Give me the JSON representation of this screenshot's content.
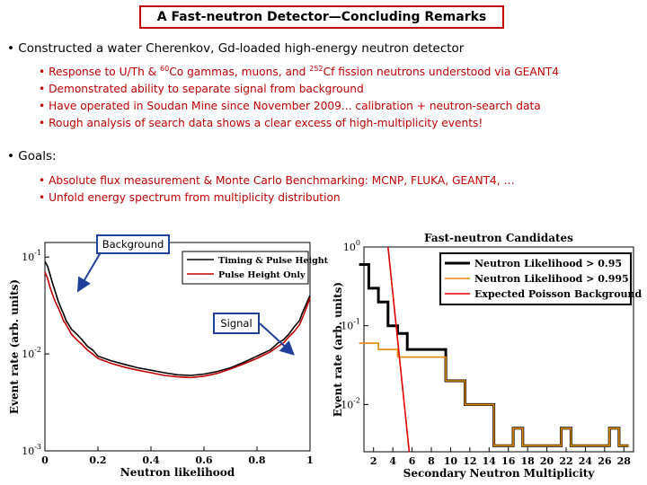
{
  "slide": {
    "title": "A Fast-neutron Detector—Concluding Remarks",
    "bullet1": "Constructed a water Cherenkov, Gd-loaded high-energy neutron detector",
    "sub1": [
      {
        "pre": "Response to U/Th & ",
        "sup1": "60",
        "mid": "Co gammas, muons, and ",
        "sup2": "252",
        "post": "Cf fission neutrons understood via GEANT4"
      },
      {
        "text": "Demonstrated ability to separate signal from background"
      },
      {
        "text": "Have operated in Soudan Mine since November 2009... calibration + neutron-search data"
      },
      {
        "text": "Rough analysis of search data shows a clear excess of high-multiplicity events!"
      }
    ],
    "bullet2": "Goals:",
    "sub2": [
      "Absolute flux measurement & Monte Carlo Benchmarking:  MCNP, FLUKA, GEANT4, …",
      "Unfold energy spectrum from multiplicity distribution"
    ],
    "callout_background": "Background",
    "callout_signal": "Signal",
    "colors": {
      "accent": "#c00000",
      "callout_border": "#1f3f9a"
    }
  },
  "chart_data": [
    {
      "type": "line",
      "title": "",
      "xlabel": "Neutron likelihood",
      "ylabel": "Event rate (arb. units)",
      "xlim": [
        0,
        1
      ],
      "ylim_log10": [
        -3,
        -0.85
      ],
      "yscale": "log",
      "x_ticks": [
        "0",
        "0.2",
        "0.4",
        "0.6",
        "0.8",
        "1"
      ],
      "y_ticks": [
        {
          "base": "10",
          "exp": "-1"
        },
        {
          "base": "10",
          "exp": "-2"
        },
        {
          "base": "10",
          "exp": "-3"
        }
      ],
      "legend": [
        "Timing & Pulse Height",
        "Pulse Height Only"
      ],
      "legend_position": "top-right",
      "series": [
        {
          "name": "Timing & Pulse Height",
          "color": "#000000",
          "x": [
            0.0,
            0.01,
            0.02,
            0.03,
            0.04,
            0.05,
            0.06,
            0.07,
            0.08,
            0.09,
            0.1,
            0.12,
            0.14,
            0.16,
            0.18,
            0.2,
            0.25,
            0.3,
            0.35,
            0.4,
            0.45,
            0.5,
            0.55,
            0.6,
            0.65,
            0.7,
            0.75,
            0.8,
            0.85,
            0.88,
            0.9,
            0.92,
            0.94,
            0.96,
            0.97,
            0.98,
            0.99,
            1.0
          ],
          "y": [
            0.09,
            0.08,
            0.065,
            0.052,
            0.043,
            0.035,
            0.03,
            0.026,
            0.022,
            0.02,
            0.018,
            0.016,
            0.014,
            0.012,
            0.011,
            0.0095,
            0.0085,
            0.0078,
            0.0072,
            0.0068,
            0.0064,
            0.0061,
            0.006,
            0.0062,
            0.0066,
            0.0072,
            0.0082,
            0.0095,
            0.011,
            0.013,
            0.014,
            0.016,
            0.019,
            0.022,
            0.026,
            0.03,
            0.035,
            0.04
          ]
        },
        {
          "name": "Pulse Height Only",
          "color": "#c00000",
          "x": [
            0.0,
            0.01,
            0.02,
            0.03,
            0.04,
            0.05,
            0.06,
            0.07,
            0.08,
            0.09,
            0.1,
            0.12,
            0.14,
            0.16,
            0.18,
            0.2,
            0.25,
            0.3,
            0.35,
            0.4,
            0.45,
            0.5,
            0.55,
            0.6,
            0.65,
            0.7,
            0.75,
            0.8,
            0.85,
            0.88,
            0.9,
            0.92,
            0.94,
            0.96,
            0.97,
            0.98,
            0.99,
            1.0
          ],
          "y": [
            0.07,
            0.06,
            0.048,
            0.04,
            0.034,
            0.03,
            0.026,
            0.022,
            0.02,
            0.018,
            0.016,
            0.014,
            0.0125,
            0.011,
            0.01,
            0.009,
            0.008,
            0.0073,
            0.0068,
            0.0064,
            0.006,
            0.0058,
            0.0057,
            0.0059,
            0.0063,
            0.007,
            0.0079,
            0.009,
            0.0105,
            0.012,
            0.013,
            0.015,
            0.017,
            0.02,
            0.023,
            0.027,
            0.032,
            0.038
          ]
        }
      ]
    },
    {
      "type": "line",
      "title": "Fast-neutron Candidates",
      "xlabel": "Secondary Neutron Multiplicity",
      "ylabel": "Event rate (arb. units)",
      "xlim": [
        1,
        29
      ],
      "ylim_log10": [
        -2.6,
        0
      ],
      "yscale": "log",
      "x_ticks": [
        "2",
        "4",
        "6",
        "8",
        "10",
        "12",
        "14",
        "16",
        "18",
        "20",
        "22",
        "24",
        "26",
        "28"
      ],
      "y_ticks": [
        {
          "base": "10",
          "exp": "0"
        },
        {
          "base": "10",
          "exp": "-1"
        },
        {
          "base": "10",
          "exp": "-2"
        }
      ],
      "legend": [
        "Neutron Likelihood > 0.95",
        "Neutron Likelihood > 0.995",
        "Expected Poisson Background"
      ],
      "legend_position": "top-right",
      "series": [
        {
          "name": "Neutron Likelihood > 0.95",
          "color": "#000000",
          "style": "step",
          "x": [
            1,
            2,
            3,
            4,
            5,
            6,
            7,
            8,
            9,
            10,
            11,
            12,
            13,
            14,
            15,
            16,
            17,
            18,
            19,
            20,
            21,
            22,
            23,
            24,
            25,
            26,
            27,
            28
          ],
          "y": [
            0.6,
            0.3,
            0.2,
            0.1,
            0.08,
            0.05,
            0.05,
            0.05,
            0.05,
            0.02,
            0.02,
            0.01,
            0.01,
            0.01,
            0.003,
            0.003,
            0.005,
            0.003,
            0.003,
            0.003,
            0.003,
            0.005,
            0.003,
            0.003,
            0.003,
            0.003,
            0.005,
            0.003
          ]
        },
        {
          "name": "Neutron Likelihood > 0.995",
          "color": "#e08a00",
          "style": "step",
          "x": [
            1,
            2,
            3,
            4,
            5,
            6,
            7,
            8,
            9,
            10,
            11,
            12,
            13,
            14,
            15,
            16,
            17,
            18,
            19,
            20,
            21,
            22,
            23,
            24,
            25,
            26,
            27,
            28
          ],
          "y": [
            0.06,
            0.06,
            0.05,
            0.05,
            0.04,
            0.04,
            0.04,
            0.04,
            0.04,
            0.02,
            0.02,
            0.01,
            0.01,
            0.01,
            0.003,
            0.003,
            0.005,
            0.003,
            0.003,
            0.003,
            0.003,
            0.005,
            0.003,
            0.003,
            0.003,
            0.003,
            0.005,
            0.003
          ]
        },
        {
          "name": "Expected Poisson Background",
          "color": "#e00000",
          "style": "line",
          "x": [
            3.5,
            5.7
          ],
          "y": [
            1.0,
            0.0025
          ]
        }
      ]
    }
  ]
}
